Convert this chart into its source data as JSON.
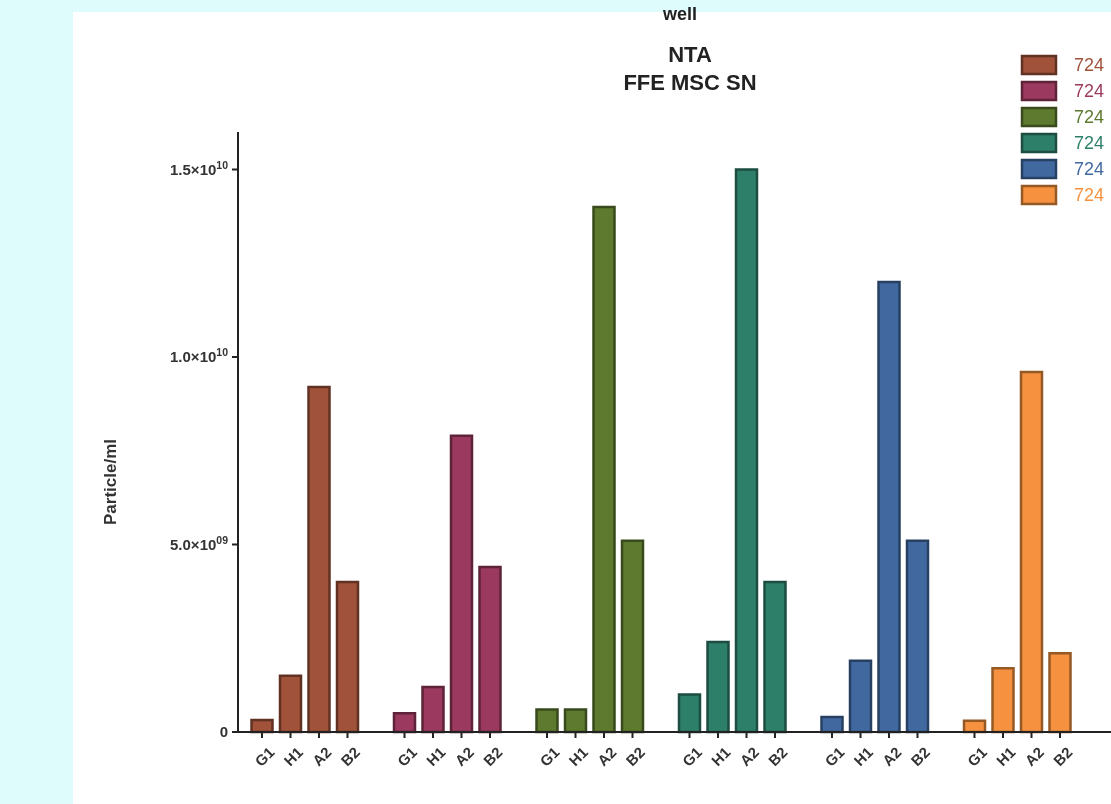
{
  "chart_data": {
    "type": "bar",
    "title": "NTA\nFFE MSC SN",
    "ylabel": "Particle/ml",
    "annotations": [
      "well"
    ],
    "categories": [
      "G1",
      "H1",
      "A2",
      "B2",
      "G1",
      "H1",
      "A2",
      "B2",
      "G1",
      "H1",
      "A2",
      "B2",
      "G1",
      "H1",
      "A2",
      "B2",
      "G1",
      "H1",
      "A2",
      "B2",
      "G1",
      "H1",
      "A2",
      "B2"
    ],
    "series": [
      {
        "name": "724",
        "color": "#a0523a",
        "values": [
          320000000,
          1500000000,
          9200000000,
          4000000000,
          null,
          null,
          null,
          null,
          null,
          null,
          null,
          null,
          null,
          null,
          null,
          null,
          null,
          null,
          null,
          null,
          null,
          null,
          null,
          null
        ]
      },
      {
        "name": "724",
        "color": "#9b3a5e",
        "values": [
          null,
          null,
          null,
          null,
          500000000,
          1200000000,
          7900000000,
          4400000000,
          null,
          null,
          null,
          null,
          null,
          null,
          null,
          null,
          null,
          null,
          null,
          null,
          null,
          null,
          null,
          null
        ]
      },
      {
        "name": "724",
        "color": "#5e7a2e",
        "values": [
          null,
          null,
          null,
          null,
          null,
          null,
          null,
          null,
          600000000,
          600000000,
          14000000000,
          5100000000,
          null,
          null,
          null,
          null,
          null,
          null,
          null,
          null,
          null,
          null,
          null,
          null
        ]
      },
      {
        "name": "724",
        "color": "#2e7f6a",
        "values": [
          null,
          null,
          null,
          null,
          null,
          null,
          null,
          null,
          null,
          null,
          null,
          null,
          1000000000,
          2400000000,
          15000000000,
          4000000000,
          null,
          null,
          null,
          null,
          null,
          null,
          null,
          null
        ]
      },
      {
        "name": "724",
        "color": "#4169a0",
        "values": [
          null,
          null,
          null,
          null,
          null,
          null,
          null,
          null,
          null,
          null,
          null,
          null,
          null,
          null,
          null,
          null,
          400000000,
          1900000000,
          12000000000,
          5100000000,
          null,
          null,
          null,
          null
        ]
      },
      {
        "name": "724",
        "color": "#f6923f",
        "values": [
          null,
          null,
          null,
          null,
          null,
          null,
          null,
          null,
          null,
          null,
          null,
          null,
          null,
          null,
          null,
          null,
          null,
          null,
          null,
          null,
          300000000,
          1700000000,
          9600000000,
          2100000000
        ]
      }
    ],
    "ylim": [
      0,
      16000000000
    ],
    "yticks": [
      0,
      {
        "value": 5000000000,
        "label": "5.0×10$^{09}$"
      },
      {
        "value": 10000000000,
        "label": "1.0×10$^{10}$"
      },
      {
        "value": 15000000000,
        "label": "1.5×10$^{10}$"
      }
    ],
    "grid": false,
    "legend": "top right"
  }
}
